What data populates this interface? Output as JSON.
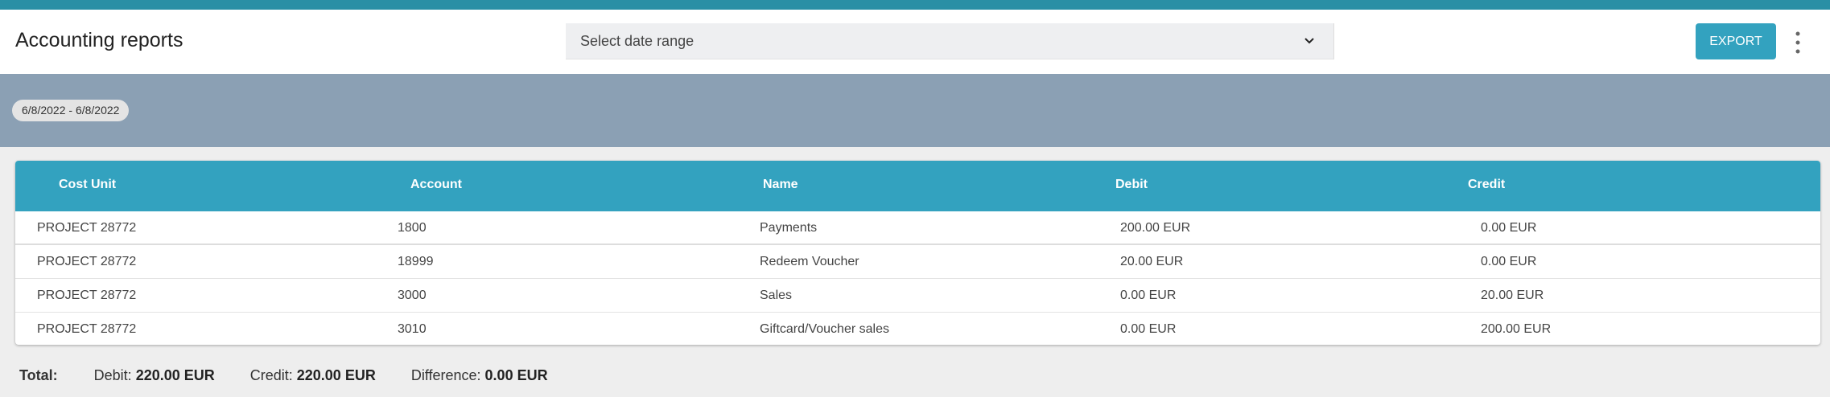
{
  "header": {
    "title": "Accounting reports",
    "date_range_placeholder": "Select date range",
    "export_label": "EXPORT"
  },
  "filter": {
    "date_chip": "6/8/2022 - 6/8/2022"
  },
  "table": {
    "columns": [
      "Cost Unit",
      "Account",
      "Name",
      "Debit",
      "Credit"
    ],
    "rows": [
      [
        "PROJECT 28772",
        "1800",
        "Payments",
        "200.00 EUR",
        "0.00 EUR"
      ],
      [
        "PROJECT 28772",
        "18999",
        "Redeem Voucher",
        "20.00 EUR",
        "0.00 EUR"
      ],
      [
        "PROJECT 28772",
        "3000",
        "Sales",
        "0.00 EUR",
        "20.00 EUR"
      ],
      [
        "PROJECT 28772",
        "3010",
        "Giftcard/Voucher sales",
        "0.00 EUR",
        "200.00 EUR"
      ]
    ]
  },
  "totals": {
    "label": "Total:",
    "debit_label": "Debit:",
    "debit": "220.00 EUR",
    "credit_label": "Credit:",
    "credit": "220.00 EUR",
    "difference_label": "Difference:",
    "difference": "0.00 EUR"
  },
  "colors": {
    "accent": "#33a2bf",
    "topbar": "#2a8fa5",
    "filter_band": "#8ba0b4"
  },
  "icons": {
    "dropdown": "chevron-down-icon",
    "menu": "more-vertical-icon"
  }
}
